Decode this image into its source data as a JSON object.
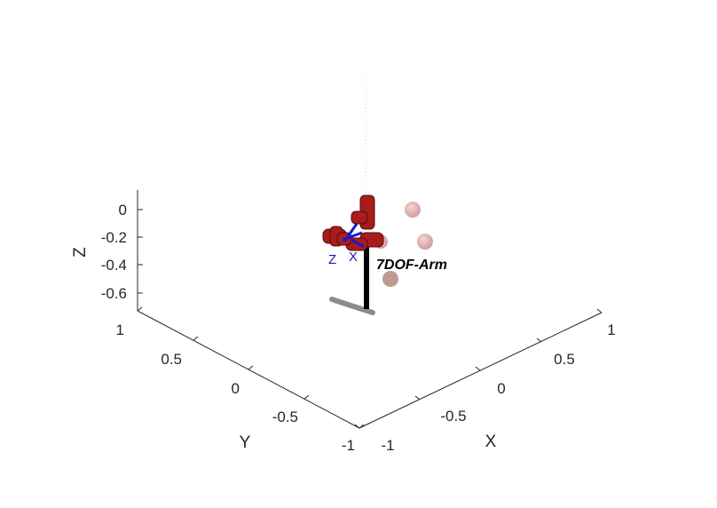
{
  "figure": {
    "axes": {
      "x": {
        "label": "X",
        "ticks": [
          "-1",
          "-0.5",
          "0",
          "0.5",
          "1"
        ]
      },
      "y": {
        "label": "Y",
        "ticks": [
          "1",
          "0.5",
          "0",
          "-0.5",
          "-1"
        ]
      },
      "z": {
        "label": "Z",
        "ticks": [
          "0",
          "-0.2",
          "-0.4",
          "-0.6"
        ]
      }
    },
    "robot": {
      "name": "7DOF-Arm",
      "frame_axes": [
        "Z",
        "X"
      ]
    },
    "floor": {
      "pattern": "checkerboard",
      "color_a": "#9be89b",
      "color_b": "#ffffff"
    },
    "colors": {
      "arm": "#b22020",
      "post": "#000000",
      "spheres": "#d99a9a",
      "frame": "#1a1acc"
    }
  }
}
